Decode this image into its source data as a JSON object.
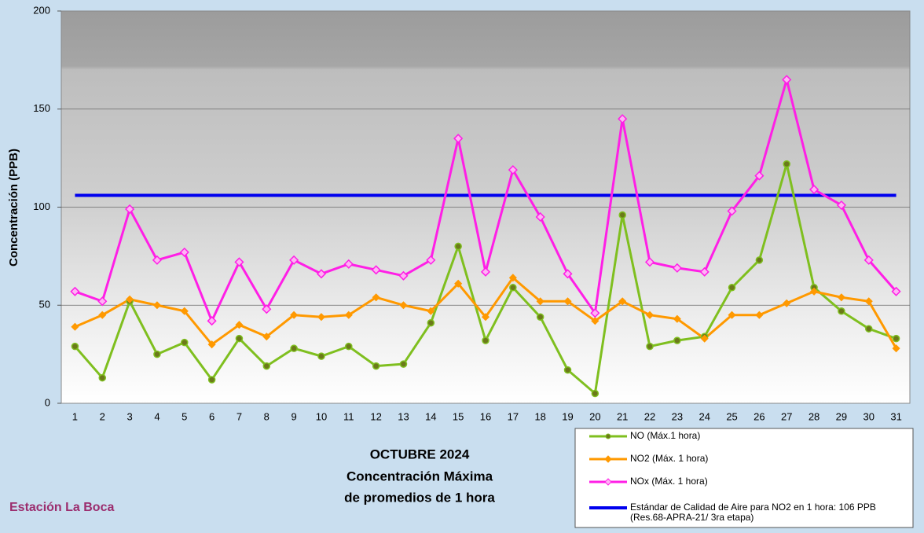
{
  "chart_data": {
    "type": "line",
    "ylabel": "Concentración  (PPB)",
    "categories": [
      1,
      2,
      3,
      4,
      5,
      6,
      7,
      8,
      9,
      10,
      11,
      12,
      13,
      14,
      15,
      16,
      17,
      18,
      19,
      20,
      21,
      22,
      23,
      24,
      25,
      26,
      27,
      28,
      29,
      30,
      31
    ],
    "ylim": [
      0,
      200
    ],
    "yticks": [
      0,
      50,
      100,
      150,
      200
    ],
    "grid": true,
    "series": [
      {
        "name": "NO (Máx.1 hora)",
        "color": "#7fbf1f",
        "marker": "circle",
        "values": [
          29,
          13,
          52,
          25,
          31,
          12,
          33,
          19,
          28,
          24,
          29,
          19,
          20,
          41,
          80,
          32,
          59,
          44,
          17,
          5,
          96,
          29,
          32,
          34,
          59,
          73,
          122,
          59,
          47,
          38,
          33
        ]
      },
      {
        "name": "NO2 (Máx. 1 hora)",
        "color": "#ff9900",
        "marker": "diamond",
        "values": [
          39,
          45,
          53,
          50,
          47,
          30,
          40,
          34,
          45,
          44,
          45,
          54,
          50,
          47,
          61,
          44,
          64,
          52,
          52,
          42,
          52,
          45,
          43,
          33,
          45,
          45,
          51,
          57,
          54,
          52,
          28
        ]
      },
      {
        "name": "NOx (Máx. 1 hora)",
        "color": "#ff1fe6",
        "marker": "open-diamond",
        "values": [
          57,
          52,
          99,
          73,
          77,
          42,
          72,
          48,
          73,
          66,
          71,
          68,
          65,
          73,
          135,
          67,
          119,
          95,
          66,
          46,
          145,
          72,
          69,
          67,
          98,
          116,
          165,
          109,
          101,
          73,
          57
        ]
      }
    ],
    "standard": {
      "name": "Estándar de Calidad de Aire para NO2 en 1 hora: 106  PPB",
      "note": "(Res.68-APRA-21/ 3ra etapa)",
      "value": 106,
      "color": "#0000ee"
    },
    "caption": [
      "OCTUBRE 2024",
      "Concentración Máxima",
      "de promedios de 1 hora"
    ],
    "station": "Estación La Boca"
  }
}
